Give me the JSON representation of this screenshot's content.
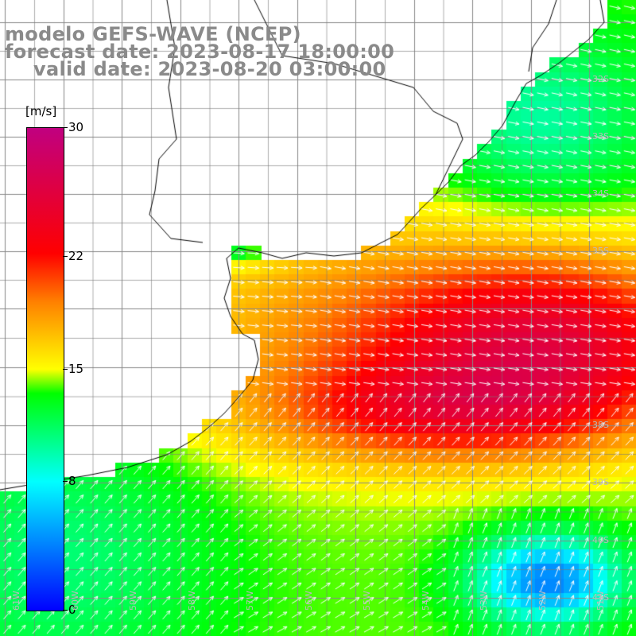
{
  "title": {
    "line1": "modelo GEFS-WAVE (NCEP)",
    "line2": "forecast date: 2023-08-17 18:00:00",
    "line3": "valid date: 2023-08-20 03:00:00"
  },
  "colorbar": {
    "unit": "[m/s]",
    "ticks": [
      "30",
      "22",
      "15",
      "8",
      "0"
    ],
    "range": [
      0,
      30
    ],
    "colors": [
      "#0000ff",
      "#00ffff",
      "#00ff00",
      "#ffff00",
      "#ff8000",
      "#ff0000",
      "#c00080"
    ]
  },
  "axes": {
    "lat_labels": [
      "32S",
      "33S",
      "34S",
      "35S",
      "38S",
      "39S",
      "40S",
      "41S"
    ],
    "lon_labels": [
      "61W",
      "60W",
      "59W",
      "58W",
      "57W",
      "56W",
      "55W",
      "54W",
      "53W",
      "52W",
      "51W"
    ]
  },
  "map": {
    "variable": "wind speed",
    "units": "m/s",
    "vector_color": "#ffffff",
    "coastline_color": "#000000",
    "grid_color": "#888888"
  }
}
